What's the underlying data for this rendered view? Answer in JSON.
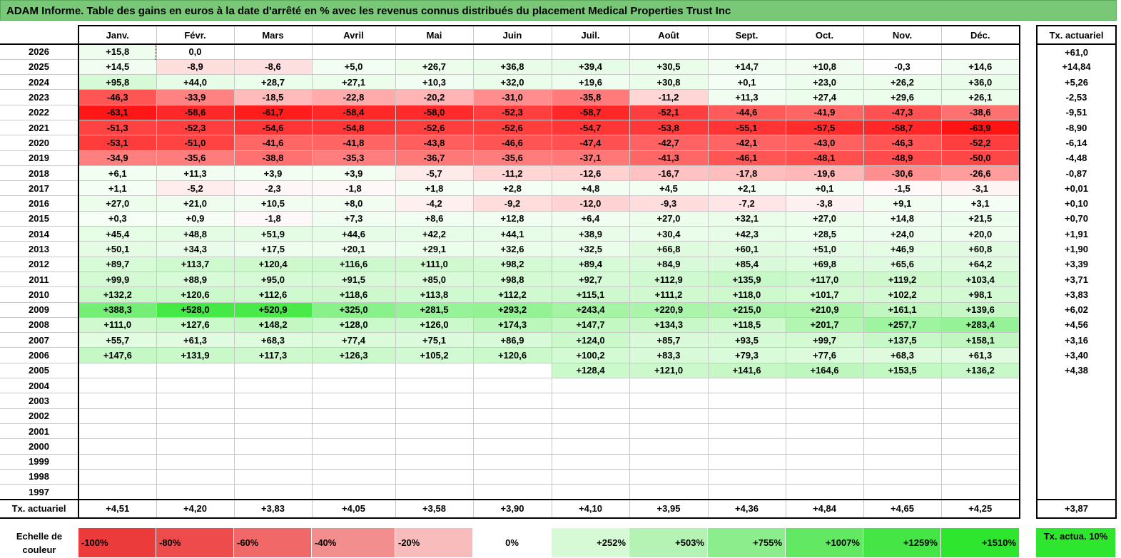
{
  "title": "ADAM Informe. Table des gains en euros à la date d'arrêté en % avec les revenus connus distribués du placement Medical Properties Trust Inc",
  "months": [
    "Janv.",
    "Févr.",
    "Mars",
    "Avril",
    "Mai",
    "Juin",
    "Juil.",
    "Août",
    "Sept.",
    "Oct.",
    "Nov.",
    "Déc."
  ],
  "side_header": "Tx. actuariel",
  "rows": [
    {
      "year": "2026",
      "v": [
        "+15,8",
        "0,0",
        "",
        "",
        "",
        "",
        "",
        "",
        "",
        "",
        "",
        ""
      ],
      "side": "+61,0"
    },
    {
      "year": "2025",
      "v": [
        "+14,5",
        "-8,9",
        "-8,6",
        "+5,0",
        "+26,7",
        "+36,8",
        "+39,4",
        "+30,5",
        "+14,7",
        "+10,8",
        "-0,3",
        "+14,6"
      ],
      "side": "+14,84"
    },
    {
      "year": "2024",
      "v": [
        "+95,8",
        "+44,0",
        "+28,7",
        "+27,1",
        "+10,3",
        "+32,0",
        "+19,6",
        "+30,8",
        "+0,1",
        "+23,0",
        "+26,2",
        "+36,0"
      ],
      "side": "+5,26"
    },
    {
      "year": "2023",
      "v": [
        "-46,3",
        "-33,9",
        "-18,5",
        "-22,8",
        "-20,2",
        "-31,0",
        "-35,8",
        "-11,2",
        "+11,3",
        "+27,4",
        "+29,6",
        "+26,1"
      ],
      "side": "-2,53"
    },
    {
      "year": "2022",
      "v": [
        "-63,1",
        "-58,6",
        "-61,7",
        "-58,4",
        "-58,0",
        "-52,3",
        "-58,7",
        "-52,1",
        "-44,6",
        "-41,9",
        "-47,3",
        "-38,6"
      ],
      "side": "-9,51"
    },
    {
      "year": "2021",
      "v": [
        "-51,3",
        "-52,3",
        "-54,6",
        "-54,8",
        "-52,6",
        "-52,6",
        "-54,7",
        "-53,8",
        "-55,1",
        "-57,5",
        "-58,7",
        "-63,9"
      ],
      "side": "-8,90"
    },
    {
      "year": "2020",
      "v": [
        "-53,1",
        "-51,0",
        "-41,6",
        "-41,8",
        "-43,8",
        "-46,6",
        "-47,4",
        "-42,7",
        "-42,1",
        "-43,0",
        "-46,3",
        "-52,2"
      ],
      "side": "-6,14"
    },
    {
      "year": "2019",
      "v": [
        "-34,9",
        "-35,6",
        "-38,8",
        "-35,3",
        "-36,7",
        "-35,6",
        "-37,1",
        "-41,3",
        "-46,1",
        "-48,1",
        "-48,9",
        "-50,0"
      ],
      "side": "-4,48"
    },
    {
      "year": "2018",
      "v": [
        "+6,1",
        "+11,3",
        "+3,9",
        "+3,9",
        "-5,7",
        "-11,2",
        "-12,6",
        "-16,7",
        "-17,8",
        "-19,6",
        "-30,6",
        "-26,6"
      ],
      "side": "-0,87"
    },
    {
      "year": "2017",
      "v": [
        "+1,1",
        "-5,2",
        "-2,3",
        "-1,8",
        "+1,8",
        "+2,8",
        "+4,8",
        "+4,5",
        "+2,1",
        "+0,1",
        "-1,5",
        "-3,1"
      ],
      "side": "+0,01"
    },
    {
      "year": "2016",
      "v": [
        "+27,0",
        "+21,0",
        "+10,5",
        "+8,0",
        "-4,2",
        "-9,2",
        "-12,0",
        "-9,3",
        "-7,2",
        "-3,8",
        "+9,1",
        "+3,1"
      ],
      "side": "+0,10"
    },
    {
      "year": "2015",
      "v": [
        "+0,3",
        "+0,9",
        "-1,8",
        "+7,3",
        "+8,6",
        "+12,8",
        "+6,4",
        "+27,0",
        "+32,1",
        "+27,0",
        "+14,8",
        "+21,5"
      ],
      "side": "+0,70"
    },
    {
      "year": "2014",
      "v": [
        "+45,4",
        "+48,8",
        "+51,9",
        "+44,6",
        "+42,2",
        "+44,1",
        "+38,9",
        "+30,4",
        "+42,3",
        "+28,5",
        "+24,0",
        "+20,0"
      ],
      "side": "+1,91"
    },
    {
      "year": "2013",
      "v": [
        "+50,1",
        "+34,3",
        "+17,5",
        "+20,1",
        "+29,1",
        "+32,6",
        "+32,5",
        "+66,8",
        "+60,1",
        "+51,0",
        "+46,9",
        "+60,8"
      ],
      "side": "+1,90"
    },
    {
      "year": "2012",
      "v": [
        "+89,7",
        "+113,7",
        "+120,4",
        "+116,6",
        "+111,0",
        "+98,2",
        "+89,4",
        "+84,9",
        "+85,4",
        "+69,8",
        "+65,6",
        "+64,2"
      ],
      "side": "+3,39"
    },
    {
      "year": "2011",
      "v": [
        "+99,9",
        "+88,9",
        "+95,0",
        "+91,5",
        "+85,0",
        "+98,8",
        "+92,7",
        "+112,9",
        "+135,9",
        "+117,0",
        "+119,2",
        "+103,4"
      ],
      "side": "+3,71"
    },
    {
      "year": "2010",
      "v": [
        "+132,2",
        "+120,6",
        "+112,6",
        "+118,6",
        "+113,8",
        "+112,2",
        "+115,1",
        "+111,2",
        "+118,0",
        "+101,7",
        "+102,2",
        "+98,1"
      ],
      "side": "+3,83"
    },
    {
      "year": "2009",
      "v": [
        "+388,3",
        "+528,0",
        "+520,9",
        "+325,0",
        "+281,5",
        "+293,2",
        "+243,4",
        "+220,9",
        "+215,0",
        "+210,9",
        "+161,1",
        "+139,6"
      ],
      "side": "+6,02"
    },
    {
      "year": "2008",
      "v": [
        "+111,0",
        "+127,6",
        "+148,2",
        "+128,0",
        "+126,0",
        "+174,3",
        "+147,7",
        "+134,3",
        "+118,5",
        "+201,7",
        "+257,7",
        "+283,4"
      ],
      "side": "+4,56"
    },
    {
      "year": "2007",
      "v": [
        "+55,7",
        "+61,3",
        "+68,3",
        "+77,4",
        "+75,1",
        "+86,9",
        "+124,0",
        "+85,7",
        "+93,5",
        "+99,7",
        "+137,5",
        "+158,1"
      ],
      "side": "+3,16"
    },
    {
      "year": "2006",
      "v": [
        "+147,6",
        "+131,9",
        "+117,3",
        "+126,3",
        "+105,2",
        "+120,6",
        "+100,2",
        "+83,3",
        "+79,3",
        "+77,6",
        "+68,3",
        "+61,3"
      ],
      "side": "+3,40"
    },
    {
      "year": "2005",
      "v": [
        "",
        "",
        "",
        "",
        "",
        "",
        "+128,4",
        "+121,0",
        "+141,6",
        "+164,6",
        "+153,5",
        "+136,2"
      ],
      "side": "+4,38"
    },
    {
      "year": "2004",
      "v": [
        "",
        "",
        "",
        "",
        "",
        "",
        "",
        "",
        "",
        "",
        "",
        ""
      ],
      "side": ""
    },
    {
      "year": "2003",
      "v": [
        "",
        "",
        "",
        "",
        "",
        "",
        "",
        "",
        "",
        "",
        "",
        ""
      ],
      "side": ""
    },
    {
      "year": "2002",
      "v": [
        "",
        "",
        "",
        "",
        "",
        "",
        "",
        "",
        "",
        "",
        "",
        ""
      ],
      "side": ""
    },
    {
      "year": "2001",
      "v": [
        "",
        "",
        "",
        "",
        "",
        "",
        "",
        "",
        "",
        "",
        "",
        ""
      ],
      "side": ""
    },
    {
      "year": "2000",
      "v": [
        "",
        "",
        "",
        "",
        "",
        "",
        "",
        "",
        "",
        "",
        "",
        ""
      ],
      "side": ""
    },
    {
      "year": "1999",
      "v": [
        "",
        "",
        "",
        "",
        "",
        "",
        "",
        "",
        "",
        "",
        "",
        ""
      ],
      "side": ""
    },
    {
      "year": "1998",
      "v": [
        "",
        "",
        "",
        "",
        "",
        "",
        "",
        "",
        "",
        "",
        "",
        ""
      ],
      "side": ""
    },
    {
      "year": "1997",
      "v": [
        "",
        "",
        "",
        "",
        "",
        "",
        "",
        "",
        "",
        "",
        "",
        ""
      ],
      "side": ""
    }
  ],
  "total": {
    "label": "Tx. actuariel",
    "v": [
      "+4,51",
      "+4,20",
      "+3,83",
      "+4,05",
      "+3,58",
      "+3,90",
      "+4,10",
      "+3,95",
      "+4,36",
      "+4,84",
      "+4,65",
      "+4,25"
    ],
    "side": "+3,87"
  },
  "legend": {
    "label": "Echelle de couleur",
    "items": [
      {
        "text": "-100%",
        "color": "#ec3b3b"
      },
      {
        "text": "-80%",
        "color": "#ee4c4c"
      },
      {
        "text": "-60%",
        "color": "#f06868"
      },
      {
        "text": "-40%",
        "color": "#f38e8e"
      },
      {
        "text": "-20%",
        "color": "#f8bcbc"
      },
      {
        "text": "0%",
        "color": "#ffffff"
      },
      {
        "text": "+252%",
        "color": "#d6f9d6"
      },
      {
        "text": "+503%",
        "color": "#b4f3b4"
      },
      {
        "text": "+755%",
        "color": "#8ced8c"
      },
      {
        "text": "+1007%",
        "color": "#62e862"
      },
      {
        "text": "+1259%",
        "color": "#45e545"
      },
      {
        "text": "+1510%",
        "color": "#2ee62e"
      }
    ],
    "side": "Tx. actua. 10%"
  },
  "colors": {
    "title_bg": "#78c878",
    "neg_max": "#ff0000",
    "pos_max": "#2ee62e"
  }
}
